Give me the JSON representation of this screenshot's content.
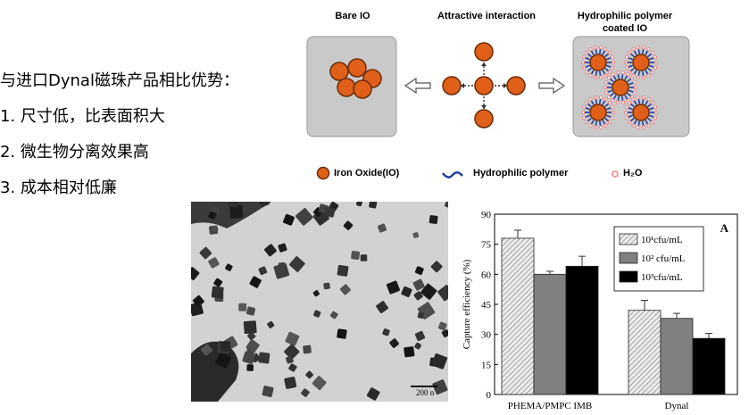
{
  "text_block": {
    "heading": "与进口Dynal磁珠产品相比优势：",
    "items": [
      "1. 尺寸低，比表面积大",
      "2. 微生物分离效果高",
      "3. 成本相对低廉"
    ]
  },
  "schematic": {
    "label_bare": "Bare IO",
    "label_interaction": "Attractive interaction",
    "label_coated_line1": "Hydrophilic polymer",
    "label_coated_line2": "coated IO",
    "legend": {
      "iron_oxide": "Iron Oxide(IO)",
      "polymer": "Hydrophilic polymer",
      "h2o": "H₂O"
    },
    "colors": {
      "iron": "#e0601a",
      "polymer": "#1f3fa0",
      "h2o": "#f08080",
      "panel": "#c9c9c9"
    }
  },
  "tem_image": {
    "scale_bar": "200 n"
  },
  "chart_data": {
    "type": "bar",
    "panel_label": "A",
    "ylabel": "Capture efficiency (%)",
    "xlabel": "",
    "ylim": [
      0,
      90
    ],
    "yticks": [
      0,
      15,
      30,
      45,
      60,
      75,
      90
    ],
    "categories": [
      "PHEMA/PMPC IMB",
      "Dynal"
    ],
    "series": [
      {
        "name": "10¹cfu/mL",
        "values": [
          78,
          42
        ],
        "errors": [
          4,
          5
        ],
        "color": "#d8d8d8",
        "hatch": true
      },
      {
        "name": "10² cfu/mL",
        "values": [
          60,
          38
        ],
        "errors": [
          1.5,
          2.5
        ],
        "color": "#808080",
        "hatch": false
      },
      {
        "name": "10³cfu/mL",
        "values": [
          64,
          28
        ],
        "errors": [
          5,
          2.5
        ],
        "color": "#000000",
        "hatch": false
      }
    ],
    "legend_placement": "top-right"
  }
}
